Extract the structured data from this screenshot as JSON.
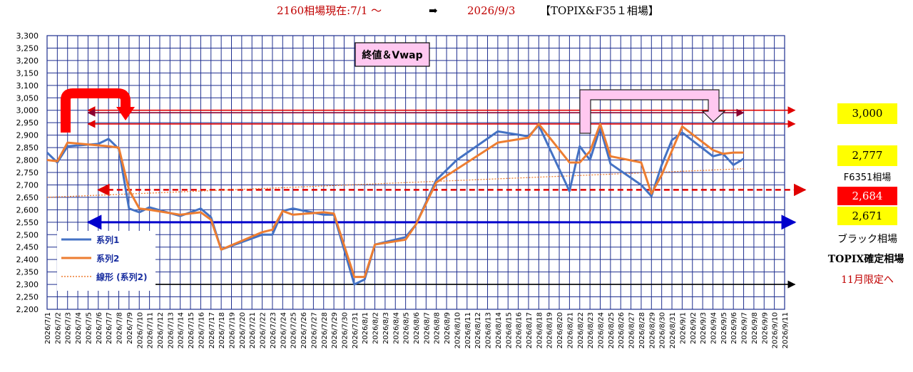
{
  "header": {
    "part1": "2160相場現在:7/1 ～",
    "arrow": "➡",
    "part2": "2026/9/3",
    "part3": "【TOPIX&F35１相場】"
  },
  "annotation": {
    "label": "終値＆Vwap"
  },
  "side_panel": {
    "level_3000": "3,000",
    "level_2777": "2,777",
    "f6351_label": "F6351相場",
    "level_2684": "2,684",
    "level_2671": "2,671",
    "black_label": "ブラック相場",
    "topix_label": "TOPIX確定相場",
    "nov_label": "11月限定へ"
  },
  "colors": {
    "series1": "#4472c4",
    "series2": "#ed7d31",
    "grid": "#1f2f8f",
    "red": "#e00000",
    "blue": "#0000cc",
    "yellow_box": "#ffff00",
    "red_box": "#ff0000",
    "pink_box": "#ffc8f0"
  },
  "chart_data": {
    "type": "line",
    "ylim": [
      2200,
      3300
    ],
    "yticks": [
      "2,200",
      "2,250",
      "2,300",
      "2,350",
      "2,400",
      "2,450",
      "2,500",
      "2,550",
      "2,600",
      "2,650",
      "2,700",
      "2,750",
      "2,800",
      "2,850",
      "2,900",
      "2,950",
      "3,000",
      "3,050",
      "3,100",
      "3,150",
      "3,200",
      "3,250",
      "3,300"
    ],
    "categories": [
      "2026/7/1",
      "2026/7/2",
      "2026/7/3",
      "2026/7/4",
      "2026/7/5",
      "2026/7/6",
      "2026/7/7",
      "2026/7/8",
      "2026/7/9",
      "2026/7/10",
      "2026/7/11",
      "2026/7/12",
      "2026/7/13",
      "2026/7/14",
      "2026/7/15",
      "2026/7/16",
      "2026/7/17",
      "2026/7/18",
      "2026/7/19",
      "2026/7/20",
      "2026/7/21",
      "2026/7/22",
      "2026/7/23",
      "2026/7/24",
      "2026/7/25",
      "2026/7/26",
      "2026/7/27",
      "2026/7/28",
      "2026/7/29",
      "2026/7/30",
      "2026/7/31",
      "2026/8/1",
      "2026/8/2",
      "2026/8/3",
      "2026/8/4",
      "2026/8/5",
      "2026/8/6",
      "2026/8/7",
      "2026/8/8",
      "2026/8/9",
      "2026/8/10",
      "2026/8/11",
      "2026/8/12",
      "2026/8/13",
      "2026/8/14",
      "2026/8/15",
      "2026/8/16",
      "2026/8/17",
      "2026/8/18",
      "2026/8/19",
      "2026/8/20",
      "2026/8/21",
      "2026/8/22",
      "2026/8/23",
      "2026/8/24",
      "2026/8/25",
      "2026/8/26",
      "2026/8/27",
      "2026/8/28",
      "2026/8/29",
      "2026/8/30",
      "2026/8/31",
      "2026/9/1",
      "2026/9/2",
      "2026/9/3",
      "2026/9/4",
      "2026/9/5",
      "2026/9/6",
      "2026/9/7",
      "2026/9/8",
      "2026/9/9",
      "2026/9/10",
      "2026/9/11"
    ],
    "series": [
      {
        "name": "系列1",
        "points": [
          [
            0,
            2830
          ],
          [
            1,
            2790
          ],
          [
            2,
            2855
          ],
          [
            5,
            2865
          ],
          [
            6,
            2885
          ],
          [
            7,
            2845
          ],
          [
            8,
            2605
          ],
          [
            9,
            2590
          ],
          [
            10,
            2610
          ],
          [
            13,
            2575
          ],
          [
            14,
            2590
          ],
          [
            15,
            2605
          ],
          [
            16,
            2570
          ],
          [
            17,
            2440
          ],
          [
            21,
            2500
          ],
          [
            22,
            2500
          ],
          [
            23,
            2595
          ],
          [
            24,
            2605
          ],
          [
            27,
            2580
          ],
          [
            28,
            2580
          ],
          [
            30,
            2300
          ],
          [
            31,
            2320
          ],
          [
            32,
            2460
          ],
          [
            35,
            2490
          ],
          [
            36,
            2540
          ],
          [
            38,
            2720
          ],
          [
            40,
            2800
          ],
          [
            44,
            2915
          ],
          [
            47,
            2895
          ],
          [
            48,
            2940
          ],
          [
            51,
            2675
          ],
          [
            52,
            2855
          ],
          [
            53,
            2800
          ],
          [
            54,
            2930
          ],
          [
            55,
            2785
          ],
          [
            58,
            2700
          ],
          [
            59,
            2655
          ],
          [
            60,
            2780
          ],
          [
            61,
            2880
          ],
          [
            62,
            2910
          ],
          [
            65,
            2815
          ],
          [
            66,
            2825
          ],
          [
            67,
            2780
          ],
          [
            68,
            2805
          ]
        ]
      },
      {
        "name": "系列2",
        "points": [
          [
            0,
            2800
          ],
          [
            1,
            2795
          ],
          [
            2,
            2870
          ],
          [
            6,
            2855
          ],
          [
            7,
            2850
          ],
          [
            8,
            2680
          ],
          [
            9,
            2605
          ],
          [
            10,
            2600
          ],
          [
            13,
            2580
          ],
          [
            15,
            2590
          ],
          [
            16,
            2560
          ],
          [
            17,
            2440
          ],
          [
            21,
            2510
          ],
          [
            22,
            2520
          ],
          [
            23,
            2595
          ],
          [
            24,
            2580
          ],
          [
            27,
            2590
          ],
          [
            28,
            2585
          ],
          [
            30,
            2330
          ],
          [
            31,
            2330
          ],
          [
            32,
            2460
          ],
          [
            35,
            2480
          ],
          [
            36,
            2540
          ],
          [
            38,
            2710
          ],
          [
            44,
            2870
          ],
          [
            47,
            2890
          ],
          [
            48,
            2945
          ],
          [
            51,
            2790
          ],
          [
            52,
            2790
          ],
          [
            53,
            2835
          ],
          [
            54,
            2945
          ],
          [
            55,
            2815
          ],
          [
            58,
            2790
          ],
          [
            59,
            2665
          ],
          [
            60,
            2740
          ],
          [
            62,
            2935
          ],
          [
            65,
            2840
          ],
          [
            66,
            2825
          ],
          [
            67,
            2830
          ],
          [
            68,
            2830
          ]
        ]
      }
    ],
    "trendline": {
      "name": "線形 (系列2)",
      "from": [
        0,
        2650
      ],
      "to": [
        68,
        2765
      ]
    },
    "levels": [
      {
        "value": 3000,
        "color": "red",
        "from": 4,
        "to": 73,
        "style": "solid"
      },
      {
        "value": 2990,
        "color": "darkred",
        "from": 4,
        "to": 68,
        "style": "solid"
      },
      {
        "value": 2945,
        "color": "red",
        "from": 4,
        "to": 73,
        "style": "solid"
      },
      {
        "value": 2680,
        "color": "red",
        "from": 5,
        "to": 74,
        "style": "dashed"
      },
      {
        "value": 2550,
        "color": "blue",
        "from": 4,
        "to": 73,
        "style": "solid"
      },
      {
        "value": 2300,
        "color": "black",
        "from": 4,
        "to": 73,
        "style": "solid"
      }
    ],
    "legend": [
      "系列1",
      "系列2",
      "線形 (系列2)"
    ]
  }
}
